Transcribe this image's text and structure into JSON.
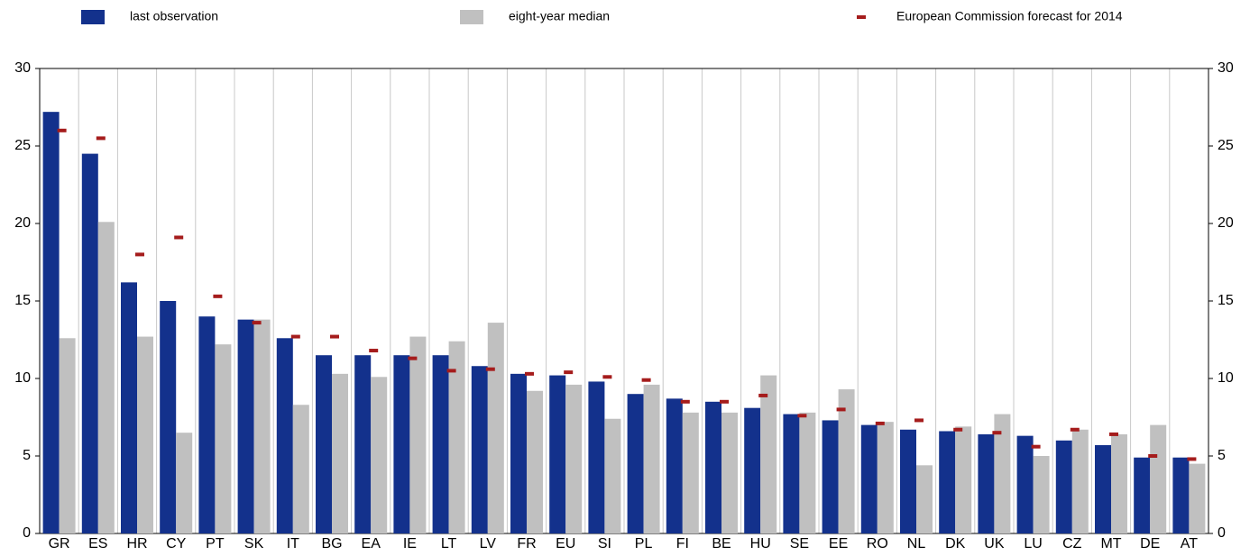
{
  "chart_data": {
    "type": "bar",
    "categories": [
      "GR",
      "ES",
      "HR",
      "CY",
      "PT",
      "SK",
      "IT",
      "BG",
      "EA",
      "IE",
      "LT",
      "LV",
      "FR",
      "EU",
      "SI",
      "PL",
      "FI",
      "BE",
      "HU",
      "SE",
      "EE",
      "RO",
      "NL",
      "DK",
      "UK",
      "LU",
      "CZ",
      "MT",
      "DE",
      "AT"
    ],
    "series": [
      {
        "name": "last observation",
        "color": "#13318c",
        "values": [
          27.2,
          24.5,
          16.2,
          15.0,
          14.0,
          13.8,
          12.6,
          11.5,
          11.5,
          11.5,
          11.5,
          10.8,
          10.3,
          10.2,
          9.8,
          9.0,
          8.7,
          8.5,
          8.1,
          7.7,
          7.3,
          7.0,
          6.7,
          6.6,
          6.4,
          6.3,
          6.0,
          5.7,
          4.9,
          4.9
        ]
      },
      {
        "name": "eight-year median",
        "color": "#c0c0c0",
        "values": [
          12.6,
          20.1,
          12.7,
          6.5,
          12.2,
          13.8,
          8.3,
          10.3,
          10.1,
          12.7,
          12.4,
          13.6,
          9.2,
          9.6,
          7.4,
          9.6,
          7.8,
          7.8,
          10.2,
          7.8,
          9.3,
          7.2,
          4.4,
          6.9,
          7.7,
          5.0,
          6.7,
          6.4,
          7.0,
          4.5
        ]
      },
      {
        "name": "European Commission forecast for 2014",
        "color": "#a51c1c",
        "marker": "dash",
        "values": [
          26.0,
          25.5,
          18.0,
          19.1,
          15.3,
          13.6,
          12.7,
          12.7,
          11.8,
          11.3,
          10.5,
          10.6,
          10.3,
          10.4,
          10.1,
          9.9,
          8.5,
          8.5,
          8.9,
          7.6,
          8.0,
          7.1,
          7.3,
          6.7,
          6.5,
          5.6,
          6.7,
          6.4,
          5.0,
          4.8
        ]
      }
    ],
    "ylim": [
      0,
      30
    ],
    "yticks": [
      0,
      5,
      10,
      15,
      20,
      25,
      30
    ],
    "y2lim": [
      0,
      30
    ],
    "y2ticks": [
      0,
      5,
      10,
      15,
      20,
      25,
      30
    ],
    "grid": "x"
  }
}
